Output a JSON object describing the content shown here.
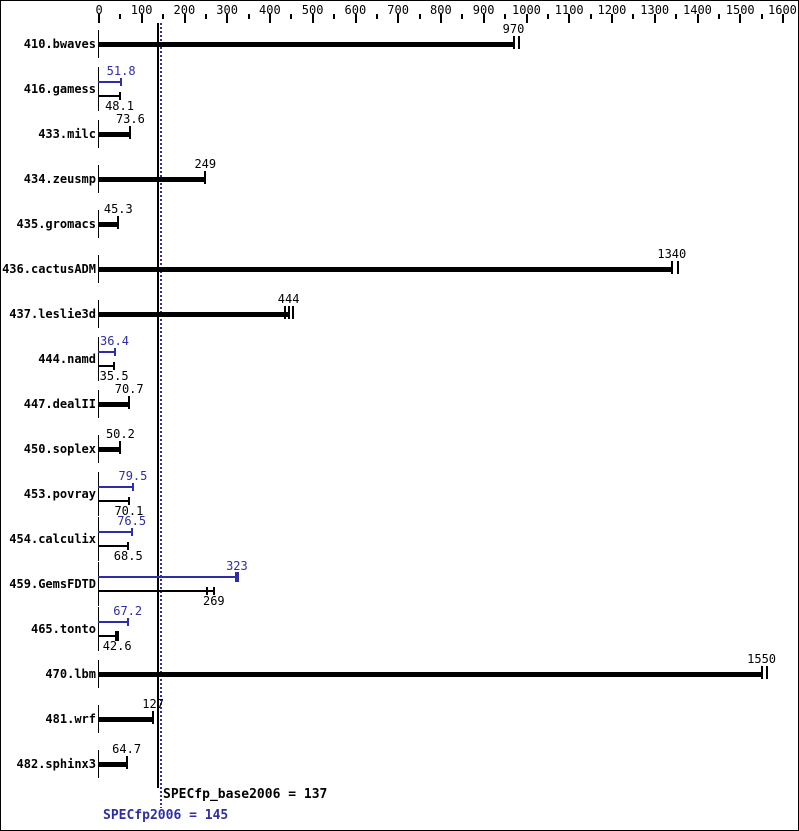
{
  "chart_data": {
    "type": "bar",
    "orientation": "horizontal",
    "title": "",
    "xlabel": "",
    "ylabel": "",
    "x_axis": {
      "min": 0,
      "max": 1600,
      "major_tick": 100,
      "minor_tick": 50,
      "tick_labels": [
        "0",
        "100",
        "200",
        "300",
        "400",
        "500",
        "600",
        "700",
        "800",
        "900",
        "1000",
        "1100",
        "1200",
        "1300",
        "1400",
        "1500",
        "1600"
      ]
    },
    "grid": false,
    "legend": false,
    "colors": {
      "base": "#000000",
      "peak": "#2e2ea6"
    },
    "reference_lines": [
      {
        "name": "SPECfp_base2006",
        "value": 137,
        "color": "#000000",
        "style": "solid"
      },
      {
        "name": "SPECfp2006",
        "value": 145,
        "color": "#2e2ea6",
        "style": "dotted"
      }
    ],
    "benchmarks": [
      {
        "name": "410.bwaves",
        "peak": null,
        "base": {
          "value": 970,
          "label": "970",
          "marks": [
            970,
            982
          ]
        }
      },
      {
        "name": "416.gamess",
        "peak": {
          "value": 51.8,
          "label": "51.8"
        },
        "base": {
          "value": 48.1,
          "label": "48.1"
        }
      },
      {
        "name": "433.milc",
        "peak": null,
        "base": {
          "value": 73.6,
          "label": "73.6"
        }
      },
      {
        "name": "434.zeusmp",
        "peak": null,
        "base": {
          "value": 249,
          "label": "249"
        }
      },
      {
        "name": "435.gromacs",
        "peak": null,
        "base": {
          "value": 45.3,
          "label": "45.3"
        }
      },
      {
        "name": "436.cactusADM",
        "peak": null,
        "base": {
          "value": 1340,
          "label": "1340",
          "marks": [
            1340,
            1354
          ]
        }
      },
      {
        "name": "437.leslie3d",
        "peak": null,
        "base": {
          "value": 444,
          "label": "444",
          "marks": [
            435,
            444,
            453
          ]
        }
      },
      {
        "name": "444.namd",
        "peak": {
          "value": 36.4,
          "label": "36.4"
        },
        "base": {
          "value": 35.5,
          "label": "35.5"
        }
      },
      {
        "name": "447.dealII",
        "peak": null,
        "base": {
          "value": 70.7,
          "label": "70.7"
        }
      },
      {
        "name": "450.soplex",
        "peak": null,
        "base": {
          "value": 50.2,
          "label": "50.2"
        }
      },
      {
        "name": "453.povray",
        "peak": {
          "value": 79.5,
          "label": "79.5"
        },
        "base": {
          "value": 70.1,
          "label": "70.1"
        }
      },
      {
        "name": "454.calculix",
        "peak": {
          "value": 76.5,
          "label": "76.5"
        },
        "base": {
          "value": 68.5,
          "label": "68.5"
        }
      },
      {
        "name": "459.GemsFDTD",
        "peak": {
          "value": 323,
          "label": "323",
          "end_bold": true
        },
        "base": {
          "value": 269,
          "label": "269",
          "marks": [
            253,
            269
          ]
        }
      },
      {
        "name": "465.tonto",
        "peak": {
          "value": 67.2,
          "label": "67.2"
        },
        "base": {
          "value": 42.6,
          "label": "42.6",
          "end_bold": true
        }
      },
      {
        "name": "470.lbm",
        "peak": null,
        "base": {
          "value": 1550,
          "label": "1550",
          "marks": [
            1550,
            1562
          ]
        }
      },
      {
        "name": "481.wrf",
        "peak": null,
        "base": {
          "value": 127,
          "label": "127"
        }
      },
      {
        "name": "482.sphinx3",
        "peak": null,
        "base": {
          "value": 64.7,
          "label": "64.7"
        }
      }
    ],
    "footer": {
      "base_label": "SPECfp_base2006 = 137",
      "peak_label": "SPECfp2006 = 145"
    }
  }
}
